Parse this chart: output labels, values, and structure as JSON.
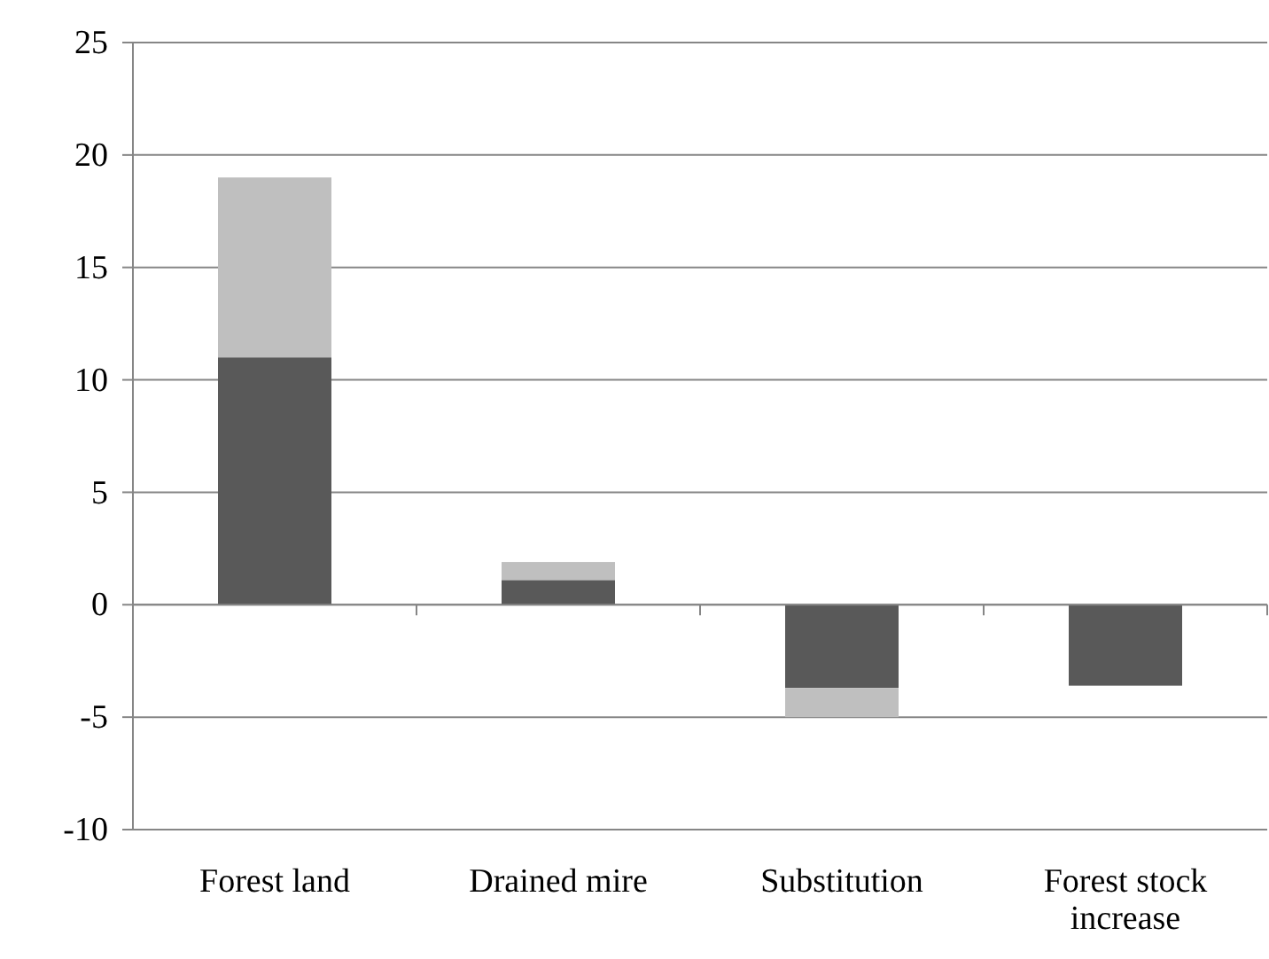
{
  "chart_data": {
    "type": "bar",
    "stacked": true,
    "categories": [
      "Forest land",
      "Drained mire",
      "Substitution",
      "Forest stock increase"
    ],
    "series": [
      {
        "color": "#595959",
        "values": [
          11,
          1.1,
          -3.7,
          -3.6
        ]
      },
      {
        "color": "#bfbfbf",
        "values": [
          8,
          0.8,
          -1.3,
          null
        ]
      }
    ],
    "ylim": [
      -10,
      25
    ],
    "yticks": [
      -10,
      -5,
      0,
      5,
      10,
      15,
      20,
      25
    ],
    "grid": "y"
  }
}
